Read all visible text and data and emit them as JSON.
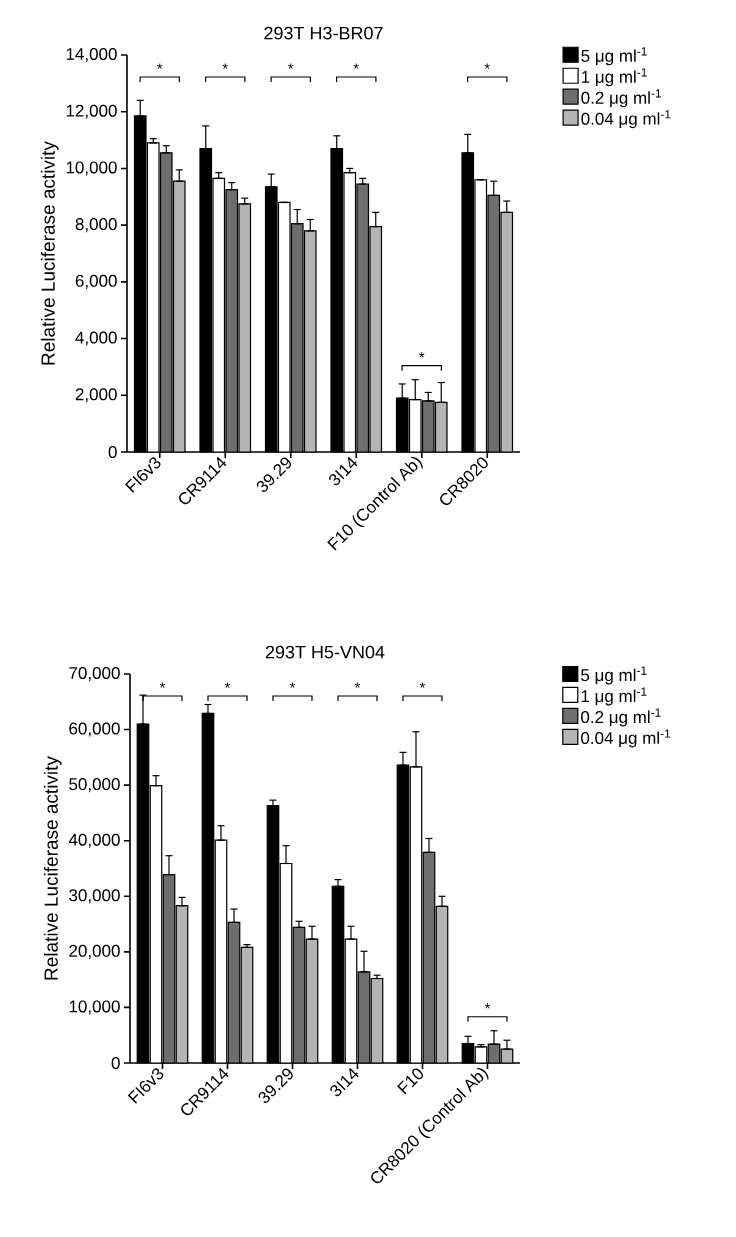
{
  "chart_data": [
    {
      "type": "bar",
      "title": "293T H3-BR07",
      "ylabel": "Relative Luciferase activity",
      "legend": "top right",
      "categories": [
        "FI6v3",
        "CR9114",
        "39.29",
        "3I14",
        "F10 (Control Ab)",
        "CR8020"
      ],
      "ylim": [
        0,
        14000
      ],
      "yticks": [
        {
          "value": 0,
          "label": "0"
        },
        {
          "value": 2000,
          "label": "2,000"
        },
        {
          "value": 4000,
          "label": "4,000"
        },
        {
          "value": 6000,
          "label": "6,000"
        },
        {
          "value": 8000,
          "label": "8,000"
        },
        {
          "value": 10000,
          "label": "10,000"
        },
        {
          "value": 12000,
          "label": "12,000"
        },
        {
          "value": 14000,
          "label": "14,000"
        }
      ],
      "series": [
        {
          "name": "5 μg ml$^{-1}$",
          "color": "#000000",
          "values": [
            11850,
            10700,
            9350,
            10700,
            1900,
            10550
          ],
          "errors": [
            [
              11850,
              12400
            ],
            [
              10700,
              11500
            ],
            [
              9350,
              9800
            ],
            [
              10700,
              11150
            ],
            [
              1900,
              2400
            ],
            [
              10550,
              11200
            ]
          ]
        },
        {
          "name": "1 μg ml$^{-1}$",
          "color": "#ffffff",
          "values": [
            10900,
            9650,
            8800,
            9850,
            1850,
            9600
          ],
          "errors": [
            [
              10900,
              11050
            ],
            [
              9650,
              9850
            ],
            null,
            [
              9850,
              10000
            ],
            [
              1850,
              2550
            ],
            null
          ]
        },
        {
          "name": "0.2 μg ml$^{-1}$",
          "color": "#6e6e6e",
          "values": [
            10550,
            9250,
            8050,
            9450,
            1800,
            9050
          ],
          "errors": [
            [
              10550,
              10800
            ],
            [
              9250,
              9500
            ],
            [
              8050,
              8550
            ],
            [
              9450,
              9650
            ],
            [
              1800,
              2100
            ],
            [
              9050,
              9550
            ]
          ]
        },
        {
          "name": "0.04 μg ml$^{-1}$",
          "color": "#b4b4b4",
          "values": [
            9550,
            8750,
            7800,
            7950,
            1750,
            8450
          ],
          "errors": [
            [
              9550,
              9950
            ],
            [
              8750,
              8950
            ],
            [
              7800,
              8200
            ],
            [
              7950,
              8450
            ],
            [
              1750,
              2450
            ],
            [
              8450,
              8850
            ]
          ]
        }
      ],
      "annotations": [
        "*",
        "*",
        "*",
        "*",
        "*",
        "*"
      ]
    },
    {
      "type": "bar",
      "title": "293T H5-VN04",
      "ylabel": "Relative Luciferase activity",
      "legend": "top right",
      "categories": [
        "FI6v3",
        "CR9114",
        "39.29",
        "3I14",
        "F10",
        "CR8020 (Control Ab)"
      ],
      "ylim": [
        0,
        70000
      ],
      "yticks": [
        {
          "value": 0,
          "label": "0"
        },
        {
          "value": 10000,
          "label": "10,000"
        },
        {
          "value": 20000,
          "label": "20,000"
        },
        {
          "value": 30000,
          "label": "30,000"
        },
        {
          "value": 40000,
          "label": "40,000"
        },
        {
          "value": 50000,
          "label": "50,000"
        },
        {
          "value": 60000,
          "label": "60,000"
        },
        {
          "value": 70000,
          "label": "70,000"
        }
      ],
      "series": [
        {
          "name": "5 μg ml$^{-1}$",
          "color": "#000000",
          "values": [
            61000,
            62900,
            46300,
            31800,
            53600,
            3500
          ],
          "errors": [
            [
              61000,
              66200
            ],
            [
              62900,
              64500
            ],
            [
              46300,
              47300
            ],
            [
              31800,
              33000
            ],
            [
              53600,
              55900
            ],
            [
              3500,
              4800
            ]
          ]
        },
        {
          "name": "1 μg ml$^{-1}$",
          "color": "#ffffff",
          "values": [
            49900,
            40100,
            35900,
            22300,
            53300,
            2900
          ],
          "errors": [
            [
              49900,
              51700
            ],
            [
              40100,
              42700
            ],
            [
              35900,
              39100
            ],
            [
              22300,
              24600
            ],
            [
              53300,
              59600
            ],
            [
              2900,
              3300
            ]
          ]
        },
        {
          "name": "0.2 μg ml$^{-1}$",
          "color": "#6e6e6e",
          "values": [
            33900,
            25300,
            24400,
            16400,
            37900,
            3400
          ],
          "errors": [
            [
              33900,
              37300
            ],
            [
              25300,
              27700
            ],
            [
              24400,
              25500
            ],
            [
              16400,
              20100
            ],
            [
              37900,
              40400
            ],
            [
              3400,
              5800
            ]
          ]
        },
        {
          "name": "0.04 μg ml$^{-1}$",
          "color": "#b4b4b4",
          "values": [
            28300,
            20800,
            22300,
            15200,
            28200,
            2500
          ],
          "errors": [
            [
              28300,
              29800
            ],
            [
              20800,
              21300
            ],
            [
              22300,
              24600
            ],
            [
              15200,
              15800
            ],
            [
              28200,
              30000
            ],
            [
              2500,
              4100
            ]
          ]
        }
      ],
      "annotations": [
        "*",
        "*",
        "*",
        "*",
        "*",
        "*"
      ]
    }
  ]
}
